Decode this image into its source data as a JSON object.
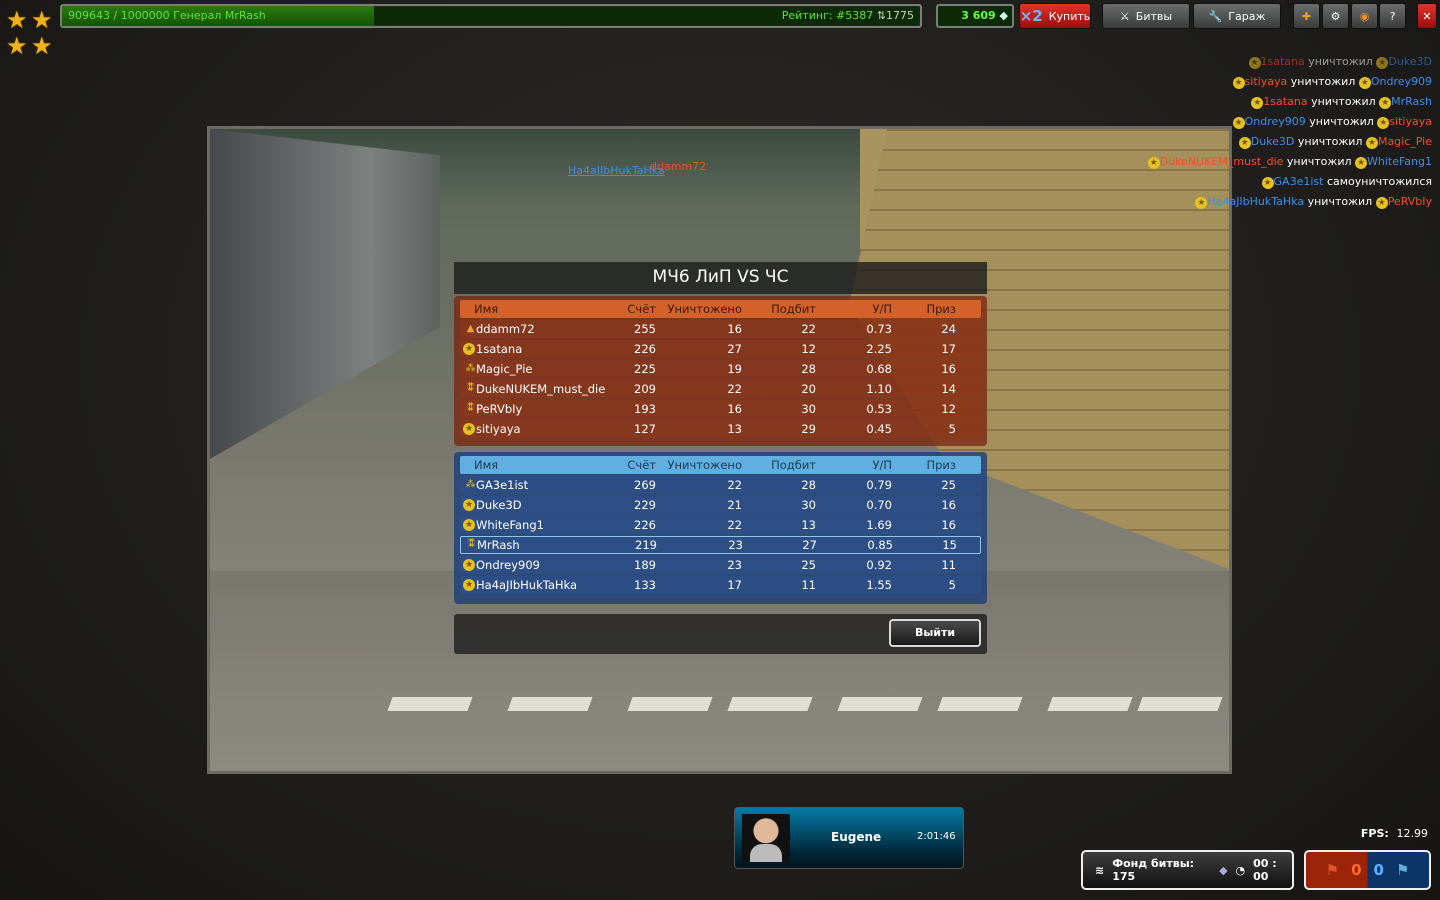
{
  "top": {
    "xp_text": "909643 / 1000000  Генерал MrRash",
    "xp_progress": 0.909643,
    "rating_text": "Рейтинг: #5387",
    "rating_delta": "⇅1775",
    "crystals": "3 609",
    "buy_multiplier": "×2",
    "buy_label": "Купить",
    "battles_label": "Битвы",
    "garage_label": "Гараж",
    "icons": [
      "add-friend-icon",
      "settings-icon",
      "sound-icon",
      "help-icon",
      "close-icon"
    ]
  },
  "viewport_tags": {
    "blue_name": "Ha4aJIbHukTaHka",
    "red_name": "ddamm72"
  },
  "kill_feed": [
    {
      "killer": "1satana",
      "killer_team": "red",
      "verb": "уничтожил",
      "victim": "Duke3D",
      "victim_team": "blue"
    },
    {
      "killer": "sitiyaya",
      "killer_team": "red",
      "verb": "уничтожил",
      "victim": "Ondrey909",
      "victim_team": "blue"
    },
    {
      "killer": "1satana",
      "killer_team": "red",
      "verb": "уничтожил",
      "victim": "MrRash",
      "victim_team": "blue"
    },
    {
      "killer": "Ondrey909",
      "killer_team": "blue",
      "verb": "уничтожил",
      "victim": "sitiyaya",
      "victim_team": "red"
    },
    {
      "killer": "Duke3D",
      "killer_team": "blue",
      "verb": "уничтожил",
      "victim": "Magic_Pie",
      "victim_team": "red"
    },
    {
      "killer": "DukeNUKEM_must_die",
      "killer_team": "red",
      "verb": "уничтожил",
      "victim": "WhiteFang1",
      "victim_team": "blue"
    },
    {
      "killer": "GA3e1ist",
      "killer_team": "blue",
      "verb": "самоуничтожился",
      "victim": "",
      "victim_team": ""
    },
    {
      "killer": "Ha4aJIbHukTaHka",
      "killer_team": "blue",
      "verb": "уничтожил",
      "victim": "PeRVbIy",
      "victim_team": "red"
    }
  ],
  "results": {
    "title": "МЧ6 ЛиП VS ЧС",
    "headers": [
      "Имя",
      "Счёт",
      "Уничтожено",
      "Подбит",
      "У/П",
      "Приз"
    ],
    "red_team": [
      {
        "rank": "ember",
        "name": "ddamm72",
        "score": "255",
        "kills": "16",
        "deaths": "22",
        "kd": "0.73",
        "prize": "24"
      },
      {
        "rank": "star-circle",
        "name": "1satana",
        "score": "226",
        "kills": "27",
        "deaths": "12",
        "kd": "2.25",
        "prize": "17"
      },
      {
        "rank": "three-stars",
        "name": "Magic_Pie",
        "score": "225",
        "kills": "19",
        "deaths": "28",
        "kd": "0.68",
        "prize": "16"
      },
      {
        "rank": "four-stars",
        "name": "DukeNUKEM_must_die",
        "score": "209",
        "kills": "22",
        "deaths": "20",
        "kd": "1.10",
        "prize": "14"
      },
      {
        "rank": "four-stars",
        "name": "PeRVbIy",
        "score": "193",
        "kills": "16",
        "deaths": "30",
        "kd": "0.53",
        "prize": "12"
      },
      {
        "rank": "star-circle",
        "name": "sitiyaya",
        "score": "127",
        "kills": "13",
        "deaths": "29",
        "kd": "0.45",
        "prize": "5"
      }
    ],
    "blue_team": [
      {
        "rank": "three-stars",
        "name": "GA3e1ist",
        "score": "269",
        "kills": "22",
        "deaths": "28",
        "kd": "0.79",
        "prize": "25"
      },
      {
        "rank": "star-circle",
        "name": "Duke3D",
        "score": "229",
        "kills": "21",
        "deaths": "30",
        "kd": "0.70",
        "prize": "16"
      },
      {
        "rank": "star-circle",
        "name": "WhiteFang1",
        "score": "226",
        "kills": "22",
        "deaths": "13",
        "kd": "1.69",
        "prize": "16"
      },
      {
        "rank": "four-stars",
        "name": "MrRash",
        "score": "219",
        "kills": "23",
        "deaths": "27",
        "kd": "0.85",
        "prize": "15",
        "current_player": true
      },
      {
        "rank": "star-circle",
        "name": "Ondrey909",
        "score": "189",
        "kills": "23",
        "deaths": "25",
        "kd": "0.92",
        "prize": "11"
      },
      {
        "rank": "star-circle",
        "name": "Ha4aJIbHukTaHka",
        "score": "133",
        "kills": "17",
        "deaths": "11",
        "kd": "1.55",
        "prize": "5"
      }
    ],
    "exit_label": "Выйти"
  },
  "player_card": {
    "name": "Eugene",
    "time": "2:01:46"
  },
  "fps": {
    "label": "FPS:",
    "value": "12.99"
  },
  "fund": {
    "label": "Фонд битвы: 175",
    "timer": "00 : 00"
  },
  "flags": {
    "red": "0",
    "blue": "0"
  },
  "colors": {
    "red_team": "#d4602a",
    "blue_team": "#5fb0de",
    "xp_green": "#5ee23a",
    "buy_red": "#c8201a"
  }
}
